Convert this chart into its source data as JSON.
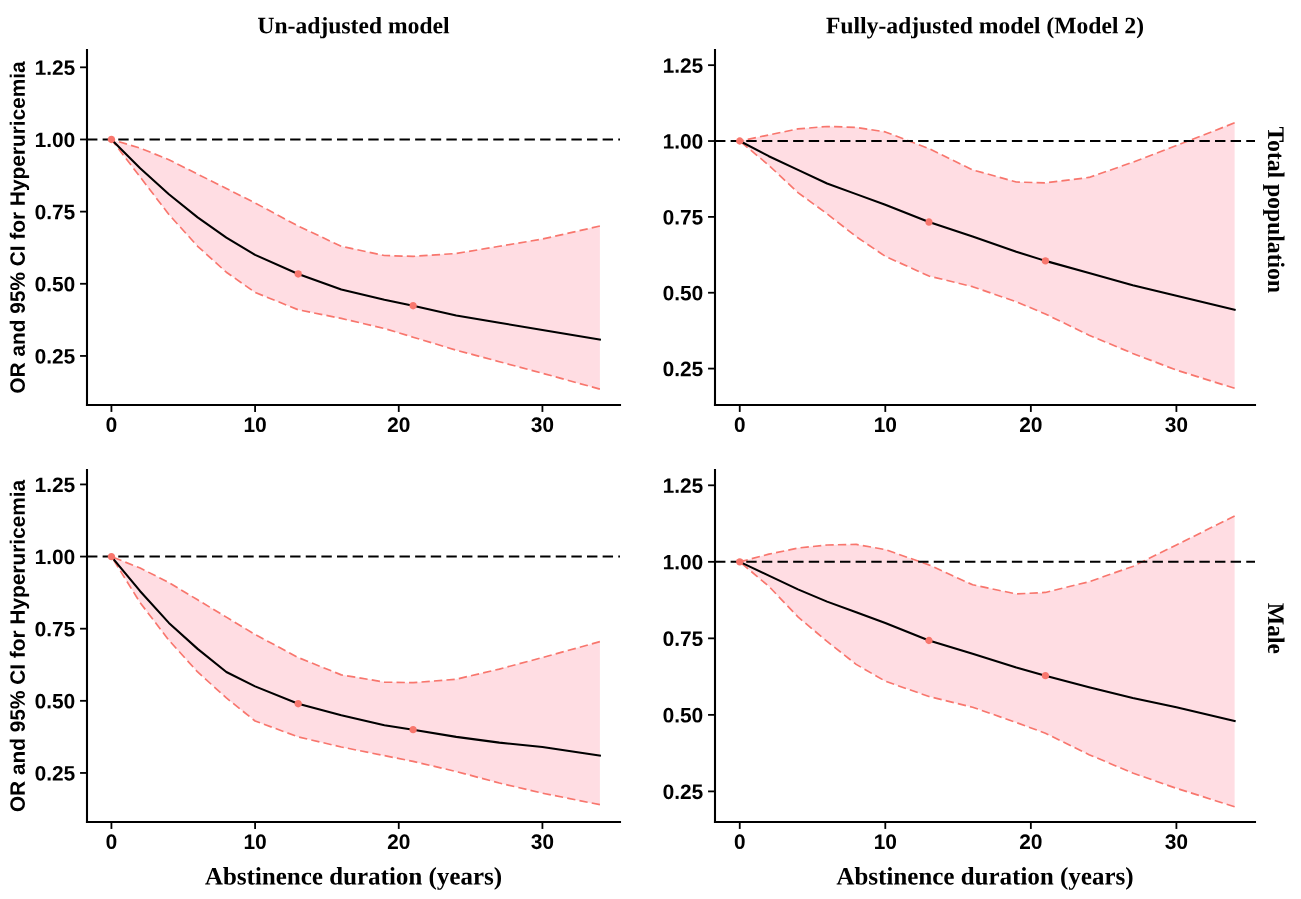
{
  "chart_data": [
    {
      "type": "line",
      "title": "Un-adjusted model",
      "ylabel": "OR and 95% CI for Hyperuricemia",
      "xlim": [
        -1.7,
        35.4
      ],
      "xticks": [
        0,
        10,
        20,
        30
      ],
      "ylim": [
        0.08,
        1.31
      ],
      "yticks": [
        {
          "value": 0.25,
          "label": "0.25"
        },
        {
          "value": 0.5,
          "label": "0.50"
        },
        {
          "value": 0.75,
          "label": "0.75"
        },
        {
          "value": 1.0,
          "label": "1.00"
        },
        {
          "value": 1.25,
          "label": "1.25"
        }
      ],
      "grid": false,
      "ref_lines": [
        {
          "axis": "y",
          "value": 1.0,
          "color": "#000000",
          "line_style": "dashed"
        }
      ],
      "series": [
        {
          "color": "#000000",
          "line_style": "solid",
          "x": [
            0,
            2,
            4,
            6,
            8,
            10,
            13,
            16,
            19,
            21,
            24,
            27,
            30,
            34
          ],
          "values": [
            1.0,
            0.9,
            0.81,
            0.73,
            0.66,
            0.6,
            0.534,
            0.48,
            0.445,
            0.424,
            0.39,
            0.365,
            0.34,
            0.307
          ],
          "lower": [
            1.0,
            0.87,
            0.74,
            0.63,
            0.54,
            0.47,
            0.41,
            0.38,
            0.345,
            0.315,
            0.27,
            0.23,
            0.19,
            0.135
          ],
          "upper": [
            1.0,
            0.97,
            0.93,
            0.88,
            0.83,
            0.78,
            0.7,
            0.63,
            0.598,
            0.595,
            0.605,
            0.63,
            0.655,
            0.7
          ]
        },
        {
          "color": "#f8766d",
          "line_style": "dashed",
          "x": [
            0,
            2,
            4,
            6,
            8,
            10,
            13,
            16,
            19,
            21,
            24,
            27,
            30,
            34
          ],
          "values": [
            1.0,
            0.97,
            0.93,
            0.88,
            0.83,
            0.78,
            0.7,
            0.63,
            0.598,
            0.595,
            0.605,
            0.63,
            0.655,
            0.7
          ]
        },
        {
          "color": "#f8766d",
          "line_style": "dashed",
          "x": [
            0,
            2,
            4,
            6,
            8,
            10,
            13,
            16,
            19,
            21,
            24,
            27,
            30,
            34
          ],
          "values": [
            1.0,
            0.87,
            0.74,
            0.63,
            0.54,
            0.47,
            0.41,
            0.38,
            0.345,
            0.315,
            0.27,
            0.23,
            0.19,
            0.135
          ]
        },
        {
          "type": "scatter",
          "color": "#f8766d",
          "marker": "circle",
          "x": [
            0,
            13,
            21
          ],
          "values": [
            1.0,
            0.534,
            0.424
          ]
        }
      ]
    },
    {
      "type": "line",
      "title": "Fully-adjusted model (Model 2)",
      "y2label": "Total population",
      "xlim": [
        -1.7,
        35.4
      ],
      "xticks": [
        0,
        10,
        20,
        30
      ],
      "ylim": [
        0.13,
        1.3
      ],
      "yticks": [
        {
          "value": 0.25,
          "label": "0.25"
        },
        {
          "value": 0.5,
          "label": "0.50"
        },
        {
          "value": 0.75,
          "label": "0.75"
        },
        {
          "value": 1.0,
          "label": "1.00"
        },
        {
          "value": 1.25,
          "label": "1.25"
        }
      ],
      "grid": false,
      "ref_lines": [
        {
          "axis": "y",
          "value": 1.0,
          "color": "#000000",
          "line_style": "dashed"
        }
      ],
      "series": [
        {
          "color": "#000000",
          "line_style": "solid",
          "x": [
            0,
            2,
            4,
            6,
            8,
            10,
            13,
            16,
            19,
            21,
            24,
            27,
            30,
            34
          ],
          "values": [
            1.0,
            0.95,
            0.905,
            0.86,
            0.825,
            0.79,
            0.733,
            0.685,
            0.635,
            0.605,
            0.565,
            0.525,
            0.49,
            0.444
          ],
          "lower": [
            1.0,
            0.92,
            0.83,
            0.76,
            0.685,
            0.62,
            0.555,
            0.52,
            0.47,
            0.43,
            0.36,
            0.3,
            0.245,
            0.185
          ],
          "upper": [
            1.0,
            1.02,
            1.04,
            1.048,
            1.045,
            1.03,
            0.975,
            0.905,
            0.865,
            0.862,
            0.88,
            0.93,
            0.985,
            1.06
          ]
        },
        {
          "color": "#f8766d",
          "line_style": "dashed",
          "x": [
            0,
            2,
            4,
            6,
            8,
            10,
            13,
            16,
            19,
            21,
            24,
            27,
            30,
            34
          ],
          "values": [
            1.0,
            1.02,
            1.04,
            1.048,
            1.045,
            1.03,
            0.975,
            0.905,
            0.865,
            0.862,
            0.88,
            0.93,
            0.985,
            1.06
          ]
        },
        {
          "color": "#f8766d",
          "line_style": "dashed",
          "x": [
            0,
            2,
            4,
            6,
            8,
            10,
            13,
            16,
            19,
            21,
            24,
            27,
            30,
            34
          ],
          "values": [
            1.0,
            0.92,
            0.83,
            0.76,
            0.685,
            0.62,
            0.555,
            0.52,
            0.47,
            0.43,
            0.36,
            0.3,
            0.245,
            0.185
          ]
        },
        {
          "type": "scatter",
          "color": "#f8766d",
          "marker": "circle",
          "x": [
            0,
            13,
            21
          ],
          "values": [
            1.0,
            0.733,
            0.605
          ]
        }
      ]
    },
    {
      "type": "line",
      "ylabel": "OR and 95% CI for Hyperuricemia",
      "xlabel": "Abstinence duration (years)",
      "xlim": [
        -1.7,
        35.4
      ],
      "xticks": [
        0,
        10,
        20,
        30
      ],
      "ylim": [
        0.08,
        1.3
      ],
      "yticks": [
        {
          "value": 0.25,
          "label": "0.25"
        },
        {
          "value": 0.5,
          "label": "0.50"
        },
        {
          "value": 0.75,
          "label": "0.75"
        },
        {
          "value": 1.0,
          "label": "1.00"
        },
        {
          "value": 1.25,
          "label": "1.25"
        }
      ],
      "grid": false,
      "ref_lines": [
        {
          "axis": "y",
          "value": 1.0,
          "color": "#000000",
          "line_style": "dashed"
        }
      ],
      "series": [
        {
          "color": "#000000",
          "line_style": "solid",
          "x": [
            0,
            2,
            4,
            6,
            8,
            10,
            13,
            16,
            19,
            21,
            24,
            27,
            30,
            34
          ],
          "values": [
            1.0,
            0.88,
            0.77,
            0.68,
            0.6,
            0.55,
            0.49,
            0.45,
            0.415,
            0.4,
            0.375,
            0.355,
            0.34,
            0.31
          ],
          "lower": [
            1.0,
            0.84,
            0.71,
            0.6,
            0.51,
            0.43,
            0.375,
            0.34,
            0.31,
            0.29,
            0.255,
            0.215,
            0.18,
            0.14
          ],
          "upper": [
            1.0,
            0.96,
            0.91,
            0.85,
            0.79,
            0.73,
            0.65,
            0.59,
            0.565,
            0.563,
            0.575,
            0.61,
            0.65,
            0.705
          ]
        },
        {
          "color": "#f8766d",
          "line_style": "dashed",
          "x": [
            0,
            2,
            4,
            6,
            8,
            10,
            13,
            16,
            19,
            21,
            24,
            27,
            30,
            34
          ],
          "values": [
            1.0,
            0.96,
            0.91,
            0.85,
            0.79,
            0.73,
            0.65,
            0.59,
            0.565,
            0.563,
            0.575,
            0.61,
            0.65,
            0.705
          ]
        },
        {
          "color": "#f8766d",
          "line_style": "dashed",
          "x": [
            0,
            2,
            4,
            6,
            8,
            10,
            13,
            16,
            19,
            21,
            24,
            27,
            30,
            34
          ],
          "values": [
            1.0,
            0.84,
            0.71,
            0.6,
            0.51,
            0.43,
            0.375,
            0.34,
            0.31,
            0.29,
            0.255,
            0.215,
            0.18,
            0.14
          ]
        },
        {
          "type": "scatter",
          "color": "#f8766d",
          "marker": "circle",
          "x": [
            0,
            13,
            21
          ],
          "values": [
            1.0,
            0.49,
            0.4
          ]
        }
      ]
    },
    {
      "type": "line",
      "y2label": "Male",
      "xlabel": "Abstinence duration (years)",
      "xlim": [
        -1.7,
        35.4
      ],
      "xticks": [
        0,
        10,
        20,
        30
      ],
      "ylim": [
        0.15,
        1.3
      ],
      "yticks": [
        {
          "value": 0.25,
          "label": "0.25"
        },
        {
          "value": 0.5,
          "label": "0.50"
        },
        {
          "value": 0.75,
          "label": "0.75"
        },
        {
          "value": 1.0,
          "label": "1.00"
        },
        {
          "value": 1.25,
          "label": "1.25"
        }
      ],
      "grid": false,
      "ref_lines": [
        {
          "axis": "y",
          "value": 1.0,
          "color": "#000000",
          "line_style": "dashed"
        }
      ],
      "series": [
        {
          "color": "#000000",
          "line_style": "solid",
          "x": [
            0,
            2,
            4,
            6,
            8,
            10,
            13,
            16,
            19,
            21,
            24,
            27,
            30,
            34
          ],
          "values": [
            1.0,
            0.955,
            0.91,
            0.87,
            0.835,
            0.8,
            0.743,
            0.7,
            0.655,
            0.628,
            0.59,
            0.555,
            0.525,
            0.48
          ],
          "lower": [
            1.0,
            0.92,
            0.82,
            0.74,
            0.665,
            0.61,
            0.56,
            0.525,
            0.475,
            0.44,
            0.37,
            0.31,
            0.26,
            0.2
          ],
          "upper": [
            1.0,
            1.025,
            1.045,
            1.055,
            1.057,
            1.04,
            0.99,
            0.925,
            0.895,
            0.9,
            0.935,
            0.985,
            1.055,
            1.15
          ]
        },
        {
          "color": "#f8766d",
          "line_style": "dashed",
          "x": [
            0,
            2,
            4,
            6,
            8,
            10,
            13,
            16,
            19,
            21,
            24,
            27,
            30,
            34
          ],
          "values": [
            1.0,
            1.025,
            1.045,
            1.055,
            1.057,
            1.04,
            0.99,
            0.925,
            0.895,
            0.9,
            0.935,
            0.985,
            1.055,
            1.15
          ]
        },
        {
          "color": "#f8766d",
          "line_style": "dashed",
          "x": [
            0,
            2,
            4,
            6,
            8,
            10,
            13,
            16,
            19,
            21,
            24,
            27,
            30,
            34
          ],
          "values": [
            1.0,
            0.92,
            0.82,
            0.74,
            0.665,
            0.61,
            0.56,
            0.525,
            0.475,
            0.44,
            0.37,
            0.31,
            0.26,
            0.2
          ]
        },
        {
          "type": "scatter",
          "color": "#f8766d",
          "marker": "circle",
          "x": [
            0,
            13,
            21
          ],
          "values": [
            1.0,
            0.743,
            0.628
          ]
        }
      ]
    }
  ]
}
